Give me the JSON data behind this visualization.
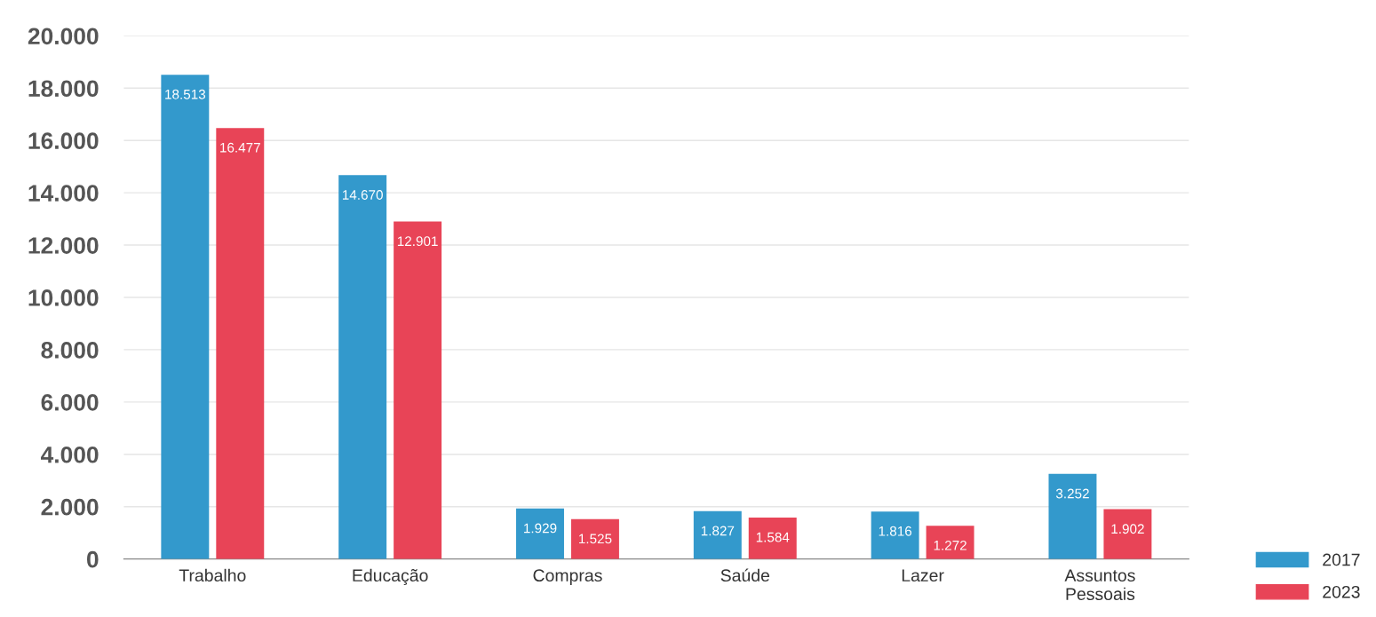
{
  "chart_data": {
    "type": "bar",
    "categories": [
      "Trabalho",
      "Educação",
      "Compras",
      "Saúde",
      "Lazer",
      "Assuntos Pessoais"
    ],
    "series": [
      {
        "name": "2017",
        "color": "#3399cc",
        "values": [
          18513,
          14670,
          1929,
          1827,
          1816,
          3252
        ],
        "value_labels": [
          "18.513",
          "14.670",
          "1.929",
          "1.827",
          "1.816",
          "3.252"
        ]
      },
      {
        "name": "2023",
        "color": "#e84457",
        "values": [
          16477,
          12901,
          1525,
          1584,
          1272,
          1902
        ],
        "value_labels": [
          "16.477",
          "12.901",
          "1.525",
          "1.584",
          "1.272",
          "1.902"
        ]
      }
    ],
    "ylim": [
      0,
      20000
    ],
    "yticks": [
      {
        "value": 0,
        "label": "0"
      },
      {
        "value": 2000,
        "label": "2.000"
      },
      {
        "value": 4000,
        "label": "4.000"
      },
      {
        "value": 6000,
        "label": "6.000"
      },
      {
        "value": 8000,
        "label": "8.000"
      },
      {
        "value": 10000,
        "label": "10.000"
      },
      {
        "value": 12000,
        "label": "12.000"
      },
      {
        "value": 14000,
        "label": "14.000"
      },
      {
        "value": 16000,
        "label": "16.000"
      },
      {
        "value": 18000,
        "label": "18.000"
      },
      {
        "value": 20000,
        "label": "20.000"
      }
    ],
    "grid": "y",
    "legend": "bottom right"
  }
}
